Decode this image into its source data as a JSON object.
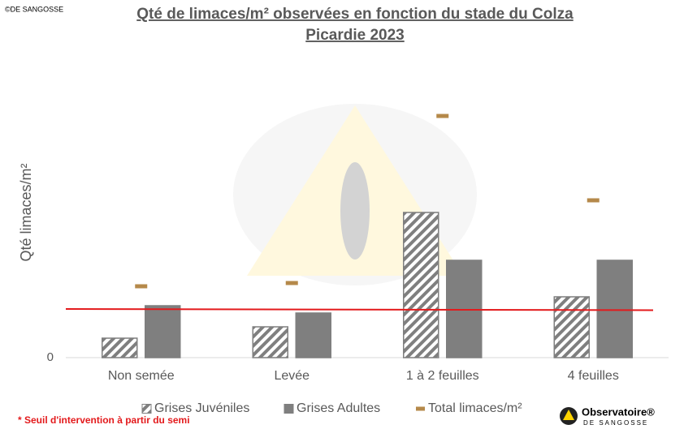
{
  "copyright": "©DE SANGOSSE",
  "footnote": "* Seuil d'intervention à partir du semi",
  "logo": {
    "name": "Observatoire®",
    "brand": "DE SANGOSSE"
  },
  "chart_data": {
    "type": "bar",
    "title": "Qté de limaces/m² observées en fonction du stade du Colza",
    "subtitle": "Picardie 2023",
    "y_label": "Qté limaces/m²",
    "categories": [
      "Non semée",
      "Levée",
      "1 à 2 feuilles",
      "4 feuilles"
    ],
    "series": [
      {
        "name": "Grises Juvéniles",
        "color": "#7f7f7f",
        "pattern": "hatch",
        "values": [
          2.4,
          3.8,
          17.9,
          7.5
        ]
      },
      {
        "name": "Grises Adultes",
        "color": "#7f7f7f",
        "values": [
          6.4,
          5.5,
          12,
          12
        ]
      },
      {
        "name": "Total limaces/m²",
        "color": "#b5894a",
        "marker": "dash",
        "values": [
          8.8,
          9.2,
          29.8,
          19.4
        ]
      }
    ],
    "threshold": {
      "value": 6,
      "color": "#e31a1c"
    },
    "ylim": [
      0,
      36
    ],
    "yticks": [
      0
    ],
    "grid": false
  }
}
